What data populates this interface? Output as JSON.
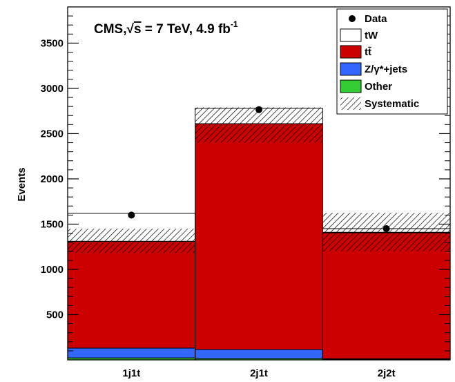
{
  "chart_data": {
    "type": "bar",
    "stacked": true,
    "categories": [
      "1j1t",
      "2j1t",
      "2j2t"
    ],
    "ylabel": "Events",
    "ylim": [
      0,
      3900
    ],
    "yticks": [
      500,
      1000,
      1500,
      2000,
      2500,
      3000,
      3500
    ],
    "annotation": {
      "prefix": "CMS,",
      "sqrt": "s",
      "mid": " = 7 TeV, 4.9 fb",
      "sup": "-1"
    },
    "series": [
      {
        "name": "Other",
        "color": "#33cc33",
        "values": [
          22,
          15,
          8
        ]
      },
      {
        "name": "Z/γ*+jets",
        "color": "#3366ff",
        "values": [
          108,
          100,
          5
        ]
      },
      {
        "name": "tt̄",
        "color": "#cc0000",
        "values": [
          1180,
          2495,
          1392
        ]
      },
      {
        "name": "tW",
        "color": "#ffffff",
        "values": [
          310,
          170,
          45
        ]
      }
    ],
    "data_points": {
      "name": "Data",
      "values": [
        1600,
        2765,
        1450
      ]
    },
    "systematic": {
      "name": "Systematic",
      "upper": [
        1450,
        2790,
        1625
      ],
      "lower": [
        1180,
        2400,
        1200
      ],
      "ttbar_upper": [
        1310,
        2610,
        1410
      ]
    },
    "legend": {
      "position": "top-right",
      "entries": [
        {
          "label": "Data",
          "symbol": "marker"
        },
        {
          "label": "tW",
          "symbol": "box",
          "color": "#ffffff"
        },
        {
          "label_base": "tt",
          "label_bar": "̄",
          "symbol": "box",
          "color": "#cc0000"
        },
        {
          "label": "Z/γ*+jets",
          "symbol": "box",
          "color": "#3366ff"
        },
        {
          "label": "Other",
          "symbol": "box",
          "color": "#33cc33"
        },
        {
          "label": "Systematic",
          "symbol": "hatch"
        }
      ]
    }
  }
}
